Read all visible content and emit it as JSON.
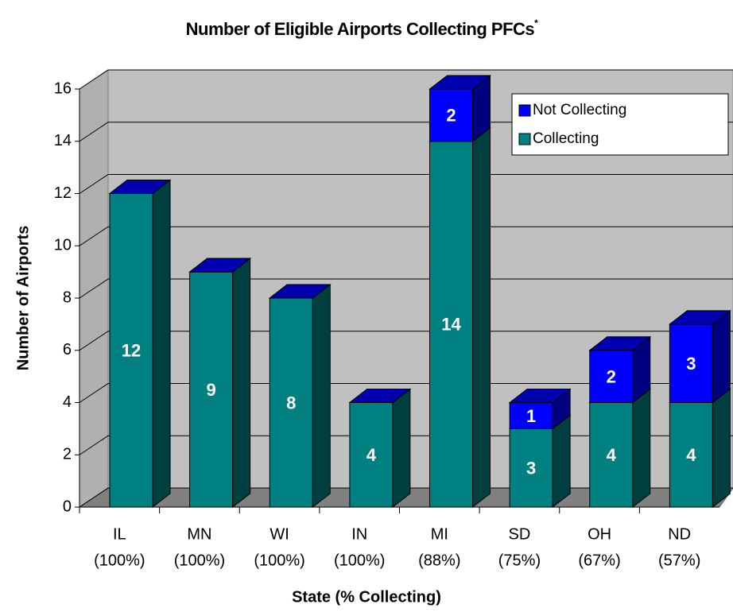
{
  "chart_data": {
    "type": "bar3d_stacked",
    "title": "Number of Eligible Airports Collecting PFCs",
    "title_marker": "*",
    "x_label": "State (% Collecting)",
    "y_label": "Number of Airports",
    "categories": [
      [
        "IL",
        "(100%)"
      ],
      [
        "MN",
        "(100%)"
      ],
      [
        "WI",
        "(100%)"
      ],
      [
        "IN",
        "(100%)"
      ],
      [
        "MI",
        "(88%)"
      ],
      [
        "SD",
        "(75%)"
      ],
      [
        "OH",
        "(67%)"
      ],
      [
        "ND",
        "(57%)"
      ]
    ],
    "series": [
      {
        "name": "Collecting",
        "color": "#008080",
        "top": "#006565",
        "side": "#003f3f",
        "values": [
          12,
          9,
          8,
          4,
          14,
          3,
          4,
          4
        ]
      },
      {
        "name": "Not Collecting",
        "color": "#0000ff",
        "top": "#0000b0",
        "side": "#000080",
        "values": [
          0,
          0,
          0,
          0,
          2,
          1,
          2,
          3
        ]
      }
    ],
    "ylim": [
      0,
      16
    ],
    "yticks": [
      0,
      2,
      4,
      6,
      8,
      10,
      12,
      14,
      16
    ],
    "grid": true,
    "legend": "top-right"
  }
}
